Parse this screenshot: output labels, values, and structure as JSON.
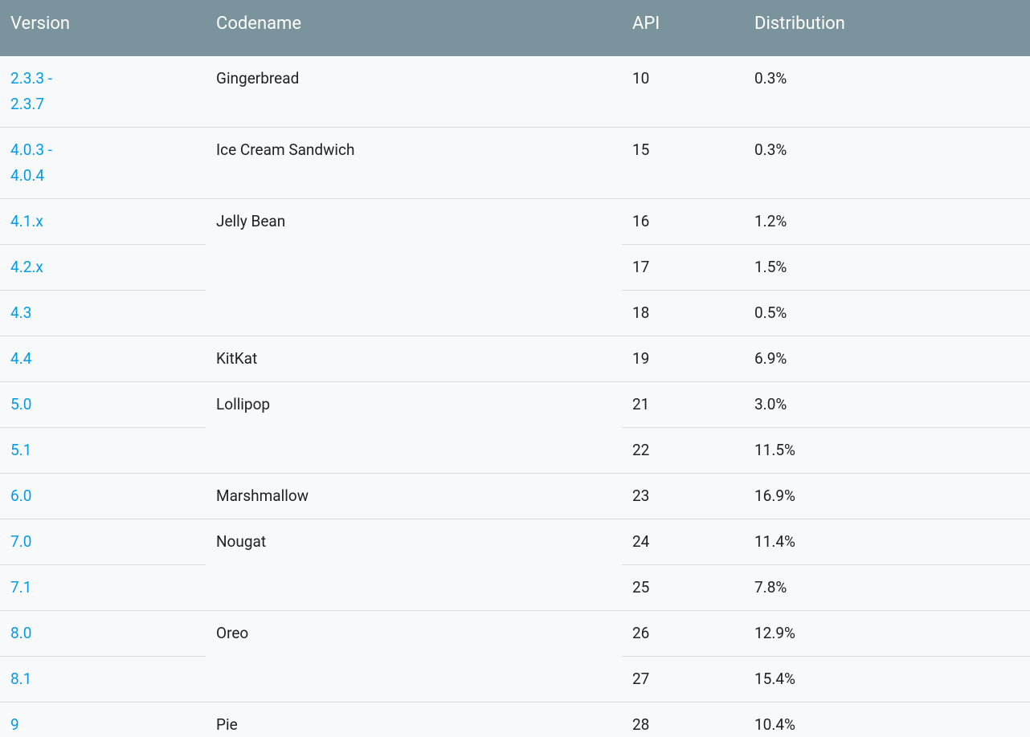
{
  "table": {
    "headers": [
      "Version",
      "Codename",
      "API",
      "Distribution"
    ],
    "groups": [
      {
        "codename": "Gingerbread",
        "versions": [
          {
            "version": "2.3.3 - 2.3.7",
            "api": 10,
            "distribution": "0.3%"
          }
        ]
      },
      {
        "codename": "Ice Cream Sandwich",
        "versions": [
          {
            "version": "4.0.3 - 4.0.4",
            "api": 15,
            "distribution": "0.3%"
          }
        ]
      },
      {
        "codename": "Jelly Bean",
        "versions": [
          {
            "version": "4.1.x",
            "api": 16,
            "distribution": "1.2%"
          },
          {
            "version": "4.2.x",
            "api": 17,
            "distribution": "1.5%"
          },
          {
            "version": "4.3",
            "api": 18,
            "distribution": "0.5%"
          }
        ]
      },
      {
        "codename": "KitKat",
        "versions": [
          {
            "version": "4.4",
            "api": 19,
            "distribution": "6.9%"
          }
        ]
      },
      {
        "codename": "Lollipop",
        "versions": [
          {
            "version": "5.0",
            "api": 21,
            "distribution": "3.0%"
          },
          {
            "version": "5.1",
            "api": 22,
            "distribution": "11.5%"
          }
        ]
      },
      {
        "codename": "Marshmallow",
        "versions": [
          {
            "version": "6.0",
            "api": 23,
            "distribution": "16.9%"
          }
        ]
      },
      {
        "codename": "Nougat",
        "versions": [
          {
            "version": "7.0",
            "api": 24,
            "distribution": "11.4%"
          },
          {
            "version": "7.1",
            "api": 25,
            "distribution": "7.8%"
          }
        ]
      },
      {
        "codename": "Oreo",
        "versions": [
          {
            "version": "8.0",
            "api": 26,
            "distribution": "12.9%"
          },
          {
            "version": "8.1",
            "api": 27,
            "distribution": "15.4%"
          }
        ]
      },
      {
        "codename": "Pie",
        "versions": [
          {
            "version": "9",
            "api": 28,
            "distribution": "10.4%"
          }
        ]
      }
    ]
  }
}
